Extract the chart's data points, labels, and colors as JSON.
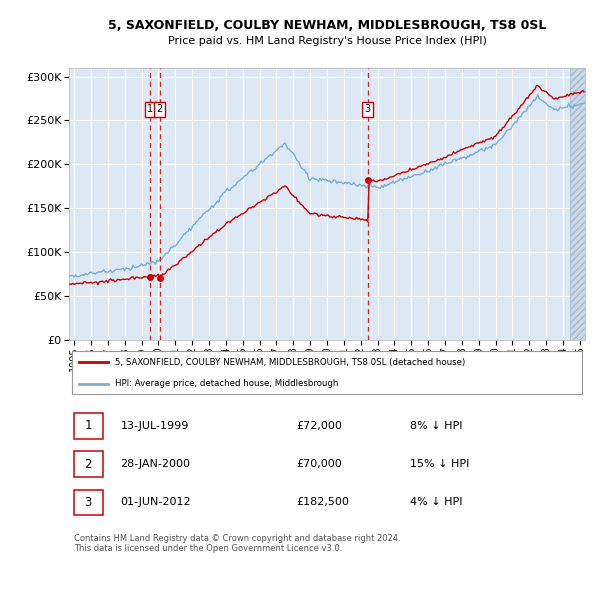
{
  "title": "5, SAXONFIELD, COULBY NEWHAM, MIDDLESBROUGH, TS8 0SL",
  "subtitle": "Price paid vs. HM Land Registry's House Price Index (HPI)",
  "red_label": "5, SAXONFIELD, COULBY NEWHAM, MIDDLESBROUGH, TS8 0SL (detached house)",
  "blue_label": "HPI: Average price, detached house, Middlesbrough",
  "sales": [
    {
      "num": 1,
      "date": "13-JUL-1999",
      "price": 72000,
      "pct": "8%",
      "dir": "↓"
    },
    {
      "num": 2,
      "date": "28-JAN-2000",
      "price": 70000,
      "pct": "15%",
      "dir": "↓"
    },
    {
      "num": 3,
      "date": "01-JUN-2012",
      "price": 182500,
      "pct": "4%",
      "dir": "↓"
    }
  ],
  "sale_years": [
    1999.53,
    2000.07,
    2012.42
  ],
  "sale_prices": [
    72000,
    70000,
    182500
  ],
  "ylim": [
    0,
    310000
  ],
  "xlim_start": 1994.7,
  "xlim_end": 2025.3,
  "background_color": "#dce9f5",
  "hatch_color": "#c8d8ea",
  "grid_color": "#ffffff",
  "red_line_color": "#cc0000",
  "blue_line_color": "#7aadd4",
  "footer_text": "Contains HM Land Registry data © Crown copyright and database right 2024.\nThis data is licensed under the Open Government Licence v3.0.",
  "yticks": [
    0,
    50000,
    100000,
    150000,
    200000,
    250000,
    300000
  ],
  "xticks": [
    1995,
    1996,
    1997,
    1998,
    1999,
    2000,
    2001,
    2002,
    2003,
    2004,
    2005,
    2006,
    2007,
    2008,
    2009,
    2010,
    2011,
    2012,
    2013,
    2014,
    2015,
    2016,
    2017,
    2018,
    2019,
    2020,
    2021,
    2022,
    2023,
    2024,
    2025
  ]
}
